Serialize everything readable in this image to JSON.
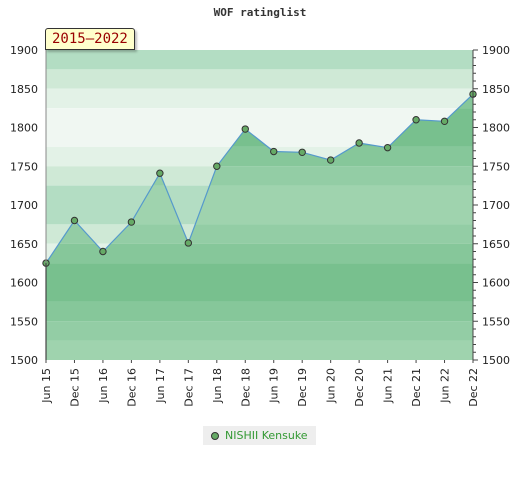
{
  "chart_data": {
    "type": "area",
    "title": "WOF ratinglist",
    "period_label": "2015–2022",
    "categories": [
      "Jun 15",
      "Dec 15",
      "Jun 16",
      "Dec 16",
      "Jun 17",
      "Dec 17",
      "Jun 18",
      "Dec 18",
      "Jun 19",
      "Dec 19",
      "Jun 20",
      "Dec 20",
      "Jun 21",
      "Dec 21",
      "Jun 22",
      "Dec 22"
    ],
    "series": [
      {
        "name": "NISHII Kensuke",
        "values": [
          1625,
          1680,
          1640,
          1678,
          1741,
          1651,
          1750,
          1798,
          1769,
          1768,
          1758,
          1780,
          1774,
          1810,
          1808,
          1843
        ],
        "color": "#5599cc",
        "marker_color": "#66aa66"
      }
    ],
    "y_ticks": [
      1500,
      1550,
      1600,
      1650,
      1700,
      1750,
      1800,
      1850,
      1900
    ],
    "ylim": [
      1500,
      1900
    ],
    "y_axis_both_sides": true,
    "legend_position": "bottom",
    "colors": {
      "band_dark": "#b3ddc3",
      "band_light": "#f0f7f2",
      "area_fill": "#7ec495",
      "area_fill_alt": "#9bd1a8",
      "line": "#5599cc"
    }
  }
}
